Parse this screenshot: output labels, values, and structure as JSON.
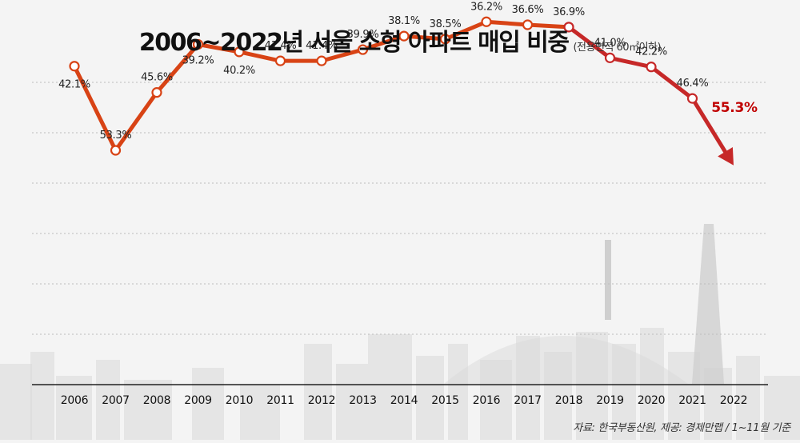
{
  "title": "2006~2022년 서울 소형 아파트 매입 비중",
  "subtitle": "(전용면적 60㎡이하)",
  "source": "자료: 한국부동산원, 제공: 경제만랩  / 1~11월 기준",
  "colors": {
    "early_line": "#d84315",
    "late_line": "#c62828",
    "highlight_label": "#c00000",
    "gridline": "#bdbdbd",
    "axis": "#222222",
    "background": "#f4f4f4",
    "skyline": "#d9d9d9"
  },
  "chart_data": {
    "type": "line",
    "categories": [
      "2006",
      "2007",
      "2008",
      "2009",
      "2010",
      "2011",
      "2012",
      "2013",
      "2014",
      "2015",
      "2016",
      "2017",
      "2018",
      "2019",
      "2020",
      "2021",
      "2022"
    ],
    "values": [
      42.1,
      53.3,
      45.6,
      39.2,
      40.2,
      41.4,
      41.4,
      39.9,
      38.1,
      38.5,
      36.2,
      36.6,
      36.9,
      41.0,
      42.2,
      46.4,
      55.3
    ],
    "labels": [
      "42.1%",
      "53.3%",
      "45.6%",
      "39.2%",
      "40.2%",
      "41.4%",
      "41.4%",
      "39.9%",
      "38.1%",
      "38.5%",
      "36.2%",
      "36.6%",
      "36.9%",
      "41.0%",
      "42.2%",
      "46.4%",
      "55.3%"
    ],
    "highlight_last": true,
    "grid": true,
    "yaxis_visible": false,
    "xlabel": "",
    "ylabel": ""
  }
}
